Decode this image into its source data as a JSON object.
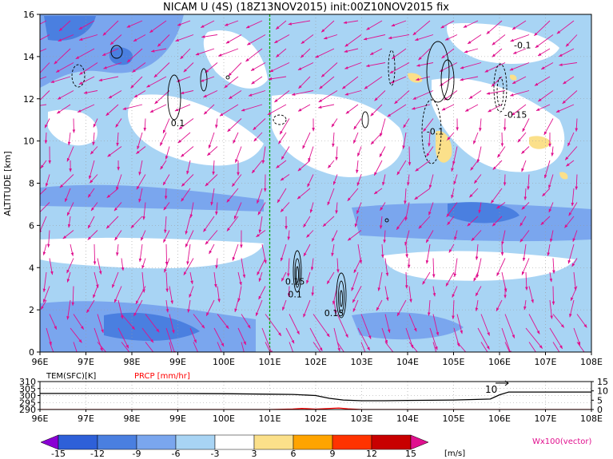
{
  "title": "NICAM U (4S) (18Z13NOV2015) init:00Z10NOV2015 fix",
  "chart_data": [
    {
      "type": "heatmap",
      "panel": "main",
      "variable": "U wind (shaded) with Wx100 vector and contours",
      "ylabel": "ALTITUDE [km]",
      "xlim": [
        96,
        108
      ],
      "ylim": [
        0,
        16
      ],
      "x_ticks": [
        "96E",
        "97E",
        "98E",
        "99E",
        "100E",
        "101E",
        "102E",
        "103E",
        "104E",
        "105E",
        "106E",
        "107E",
        "108E"
      ],
      "y_ticks": [
        "0",
        "2",
        "4",
        "6",
        "8",
        "10",
        "12",
        "14",
        "16"
      ],
      "grid": true,
      "reference_line_x": 101,
      "contour_labels": [
        {
          "text": "0.1",
          "x": 99.0,
          "y": 10.7
        },
        {
          "text": "-0.1",
          "x": 106.5,
          "y": 14.4
        },
        {
          "text": "-0.15",
          "x": 106.35,
          "y": 11.1
        },
        {
          "text": "-0.1",
          "x": 104.6,
          "y": 10.3
        },
        {
          "text": "0.15",
          "x": 101.55,
          "y": 3.2
        },
        {
          "text": "0.1",
          "x": 101.55,
          "y": 2.6
        },
        {
          "text": "0.15",
          "x": 102.4,
          "y": 1.7
        }
      ]
    },
    {
      "type": "line",
      "panel": "surface",
      "series": [
        {
          "name": "TEM(SFC)[K]",
          "color": "#000000",
          "x": [
            96,
            97,
            98,
            99,
            100,
            101,
            101.5,
            102,
            102.3,
            102.6,
            103,
            103.5,
            104,
            104.5,
            105,
            105.5,
            105.8,
            106,
            106.2,
            107,
            108
          ],
          "values": [
            301.5,
            301.5,
            301.5,
            301.5,
            301.3,
            301.0,
            300.8,
            300.0,
            298.0,
            296.8,
            296.3,
            296.3,
            296.5,
            296.6,
            296.8,
            297.2,
            297.5,
            300.5,
            302.5,
            302.5,
            302.5
          ]
        },
        {
          "name": "PRCP [mm/hr]",
          "color": "#ff0000",
          "x": [
            96,
            101,
            101.5,
            101.7,
            102,
            102.5,
            102.7,
            103,
            104,
            108
          ],
          "values": [
            0,
            0,
            0.3,
            0.6,
            0.2,
            0.8,
            0.4,
            0,
            0,
            0
          ]
        }
      ],
      "y_left_ticks": [
        "290",
        "295",
        "300",
        "305",
        "310"
      ],
      "y_right_ticks": [
        "0",
        "5",
        "10",
        "15"
      ],
      "annotation": "10",
      "xlim": [
        96,
        108
      ]
    }
  ],
  "colorbar": {
    "labels": [
      "-15",
      "-12",
      "-9",
      "-6",
      "-3",
      "3",
      "6",
      "9",
      "12",
      "15"
    ],
    "colors": [
      "#8a00d4",
      "#2e60d8",
      "#4a7fe0",
      "#7aa6ee",
      "#a8d4f4",
      "#ffffff",
      "#fbe08a",
      "#ffa400",
      "#ff3300",
      "#c80000",
      "#e0108e"
    ],
    "unit": "[m/s]",
    "vector_label": "Wx100(vector)"
  }
}
